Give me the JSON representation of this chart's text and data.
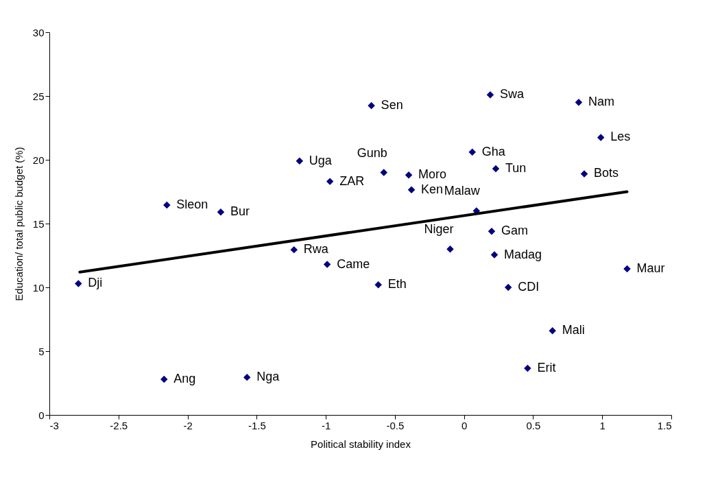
{
  "chart_data": {
    "type": "scatter",
    "xlabel": "Political stability index",
    "ylabel": "Education/ total public budget (%)",
    "xlim": [
      -3,
      1.5
    ],
    "xticks": [
      -3,
      -2.5,
      -2,
      -1.5,
      -1,
      -0.5,
      0,
      0.5,
      1,
      1.5
    ],
    "ylim": [
      0,
      30
    ],
    "yticks": [
      0,
      5,
      10,
      15,
      20,
      25,
      30
    ],
    "grid": false,
    "series": [
      {
        "color": "#000080",
        "marker": "diamond",
        "x": [
          -2.79,
          -2.17,
          -2.15,
          -1.76,
          -1.57,
          -1.23,
          -1.19,
          -0.99,
          -0.97,
          -0.67,
          -0.58,
          -0.62,
          -0.4,
          -0.38,
          -0.1,
          0.09,
          0.06,
          0.19,
          0.23,
          0.2,
          0.22,
          0.32,
          0.46,
          0.64,
          0.83,
          0.99,
          0.87,
          1.18
        ],
        "values": [
          10.3,
          2.8,
          16.45,
          15.9,
          2.95,
          12.95,
          19.9,
          11.8,
          18.3,
          24.25,
          19.0,
          10.2,
          18.8,
          17.65,
          13.0,
          16.0,
          20.6,
          25.1,
          19.3,
          14.4,
          12.55,
          10.0,
          3.65,
          6.6,
          24.5,
          21.75,
          18.9,
          11.45
        ],
        "value_labels": [
          "Dji",
          "Ang",
          "Sleon",
          "Bur",
          "Nga",
          "Rwa",
          "Uga",
          "Came",
          "ZAR",
          "Sen",
          "Gunb",
          "Eth",
          "Moro",
          "Ken",
          "Niger",
          "Malaw",
          "Gha",
          "Swa",
          "Tun",
          "Gam",
          "Madag",
          "CDI",
          "Erit",
          "Mali",
          "Nam",
          "Les",
          "Bots",
          "Maur"
        ]
      },
      {
        "type": "line",
        "color": "#000000",
        "marker": "none",
        "x": [
          -2.78,
          1.18
        ],
        "values": [
          11.2,
          17.5
        ]
      }
    ]
  }
}
